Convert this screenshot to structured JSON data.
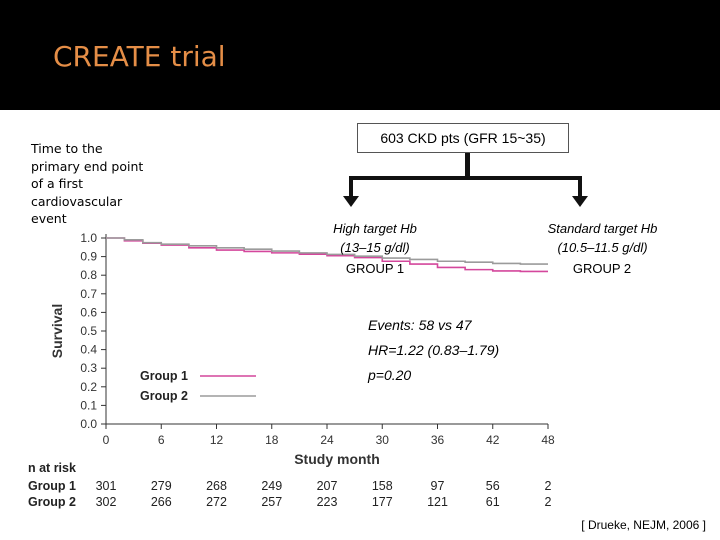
{
  "slide": {
    "title": "CREATE trial",
    "side_text": [
      "Time to the",
      "primary end point",
      "of a first",
      "cardiovascular",
      "event"
    ],
    "citation": "[ Drueke, NEJM, 2006 ]"
  },
  "diagram": {
    "top_box": "603 CKD pts (GFR 15~35)",
    "arm1_line1": "High target Hb",
    "arm1_line2": "(13–15 g/dl)",
    "arm1_group": "GROUP 1",
    "arm2_line1": "Standard target Hb",
    "arm2_line2": "(10.5–11.5 g/dl)",
    "arm2_group": "GROUP 2"
  },
  "annotations": {
    "events": "Events: 58 vs 47",
    "hr": "HR=1.22 (0.83–1.79)",
    "p": "p=0.20"
  },
  "chart_data": {
    "type": "line",
    "xlabel": "Study month",
    "ylabel": "Survival",
    "xlim": [
      0,
      48
    ],
    "ylim": [
      0.0,
      1.0
    ],
    "x_ticks": [
      "0",
      "6",
      "12",
      "18",
      "24",
      "30",
      "36",
      "42",
      "48"
    ],
    "y_ticks": [
      "0.0",
      "0.1",
      "0.2",
      "0.3",
      "0.4",
      "0.5",
      "0.6",
      "0.7",
      "0.8",
      "0.9",
      "1.0"
    ],
    "legend_position": "inside-left",
    "series": [
      {
        "name": "Group 1",
        "color": "#d4479c",
        "x": [
          0,
          2,
          4,
          6,
          9,
          12,
          15,
          18,
          21,
          24,
          27,
          30,
          33,
          36,
          39,
          42,
          45,
          48
        ],
        "y": [
          1.0,
          0.985,
          0.972,
          0.962,
          0.947,
          0.935,
          0.928,
          0.92,
          0.913,
          0.905,
          0.895,
          0.875,
          0.86,
          0.842,
          0.83,
          0.823,
          0.82,
          0.82
        ]
      },
      {
        "name": "Group 2",
        "color": "#9b9b9b",
        "x": [
          0,
          2,
          4,
          6,
          9,
          12,
          15,
          18,
          21,
          24,
          27,
          30,
          33,
          36,
          39,
          42,
          45,
          48
        ],
        "y": [
          1.0,
          0.99,
          0.975,
          0.967,
          0.958,
          0.947,
          0.94,
          0.93,
          0.92,
          0.912,
          0.902,
          0.892,
          0.885,
          0.875,
          0.87,
          0.863,
          0.86,
          0.86
        ]
      }
    ],
    "at_risk": {
      "header": "n at risk",
      "rows": [
        {
          "label": "Group 1",
          "values": [
            "301",
            "279",
            "268",
            "249",
            "207",
            "158",
            "97",
            "56",
            "2"
          ]
        },
        {
          "label": "Group 2",
          "values": [
            "302",
            "266",
            "272",
            "257",
            "223",
            "177",
            "121",
            "61",
            "2"
          ]
        }
      ]
    }
  }
}
